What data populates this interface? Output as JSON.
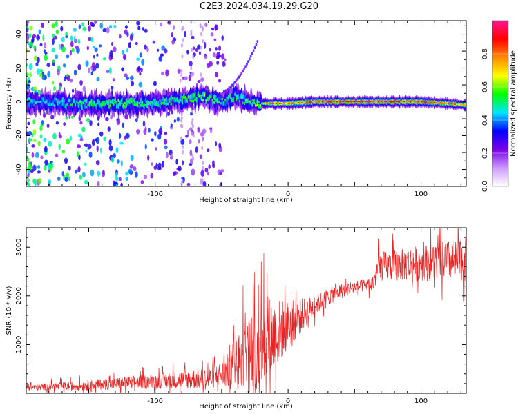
{
  "title": "C2E3.2024.034.19.29.G20",
  "chart_data": [
    {
      "type": "heatmap",
      "xlabel": "Height of straight line (km)",
      "ylabel": "Frequency (Hz)",
      "xlim": [
        -197,
        134
      ],
      "ylim": [
        -50,
        48
      ],
      "xticks": [
        -100,
        0,
        100
      ],
      "yticks": [
        -40,
        -20,
        0,
        20,
        40
      ],
      "colorbar": {
        "label": "Normalized spectral amplitude",
        "range": [
          0.0,
          1.0
        ],
        "ticks": [
          0.0,
          0.2,
          0.4,
          0.6,
          0.8
        ],
        "colors": [
          "#ffffff",
          "#cc99ff",
          "#7a00e6",
          "#0000ff",
          "#00e5ff",
          "#00ff00",
          "#ffff00",
          "#ff8800",
          "#ff0000",
          "#ff1493"
        ]
      },
      "ridge": [
        {
          "x": -180,
          "y": 0.0,
          "amp": 0.45
        },
        {
          "x": -160,
          "y": -1.0,
          "amp": 0.5
        },
        {
          "x": -140,
          "y": -1.5,
          "amp": 0.55
        },
        {
          "x": -120,
          "y": -1.0,
          "amp": 0.55
        },
        {
          "x": -100,
          "y": -1.0,
          "amp": 0.5
        },
        {
          "x": -80,
          "y": 1.5,
          "amp": 0.55
        },
        {
          "x": -65,
          "y": 3.0,
          "amp": 0.6
        },
        {
          "x": -50,
          "y": 0.0,
          "amp": 0.5
        },
        {
          "x": -40,
          "y": 3.0,
          "amp": 0.5
        },
        {
          "x": -25,
          "y": -1.0,
          "amp": 0.55
        },
        {
          "x": -10,
          "y": -1.0,
          "amp": 0.8
        },
        {
          "x": 0,
          "y": -1.0,
          "amp": 0.75
        },
        {
          "x": 20,
          "y": 0.0,
          "amp": 0.85
        },
        {
          "x": 40,
          "y": 0.0,
          "amp": 0.9
        },
        {
          "x": 60,
          "y": 0.0,
          "amp": 0.85
        },
        {
          "x": 80,
          "y": 0.0,
          "amp": 0.85
        },
        {
          "x": 100,
          "y": 0.0,
          "amp": 0.85
        },
        {
          "x": 120,
          "y": -1.0,
          "amp": 0.8
        },
        {
          "x": 134,
          "y": -2.0,
          "amp": 0.7
        }
      ]
    },
    {
      "type": "line",
      "xlabel": "Height of straight line (km)",
      "ylabel": "SNR (10 * v/v)",
      "xlim": [
        -197,
        134
      ],
      "ylim": [
        0,
        3400
      ],
      "xticks": [
        -100,
        0,
        100
      ],
      "yticks": [
        1000,
        2000,
        3000
      ],
      "color": "#ee2222",
      "trend": [
        {
          "x": -197,
          "y": 120
        },
        {
          "x": -160,
          "y": 150
        },
        {
          "x": -130,
          "y": 200
        },
        {
          "x": -100,
          "y": 250
        },
        {
          "x": -80,
          "y": 280
        },
        {
          "x": -60,
          "y": 300
        },
        {
          "x": -45,
          "y": 450
        },
        {
          "x": -35,
          "y": 700
        },
        {
          "x": -25,
          "y": 900
        },
        {
          "x": -15,
          "y": 1100
        },
        {
          "x": -5,
          "y": 1300
        },
        {
          "x": 5,
          "y": 1500
        },
        {
          "x": 15,
          "y": 1700
        },
        {
          "x": 25,
          "y": 1900
        },
        {
          "x": 35,
          "y": 2050
        },
        {
          "x": 45,
          "y": 2150
        },
        {
          "x": 55,
          "y": 2200
        },
        {
          "x": 64,
          "y": 2250
        },
        {
          "x": 68,
          "y": 2600
        },
        {
          "x": 90,
          "y": 2650
        },
        {
          "x": 110,
          "y": 2700
        },
        {
          "x": 134,
          "y": 2750
        }
      ],
      "noise": [
        {
          "x": -197,
          "amp": 60
        },
        {
          "x": -100,
          "amp": 150
        },
        {
          "x": -50,
          "amp": 250
        },
        {
          "x": -30,
          "amp": 800
        },
        {
          "x": -15,
          "amp": 900
        },
        {
          "x": 0,
          "amp": 500
        },
        {
          "x": 20,
          "amp": 200
        },
        {
          "x": 60,
          "amp": 120
        },
        {
          "x": 70,
          "amp": 300
        },
        {
          "x": 134,
          "amp": 450
        }
      ]
    }
  ]
}
